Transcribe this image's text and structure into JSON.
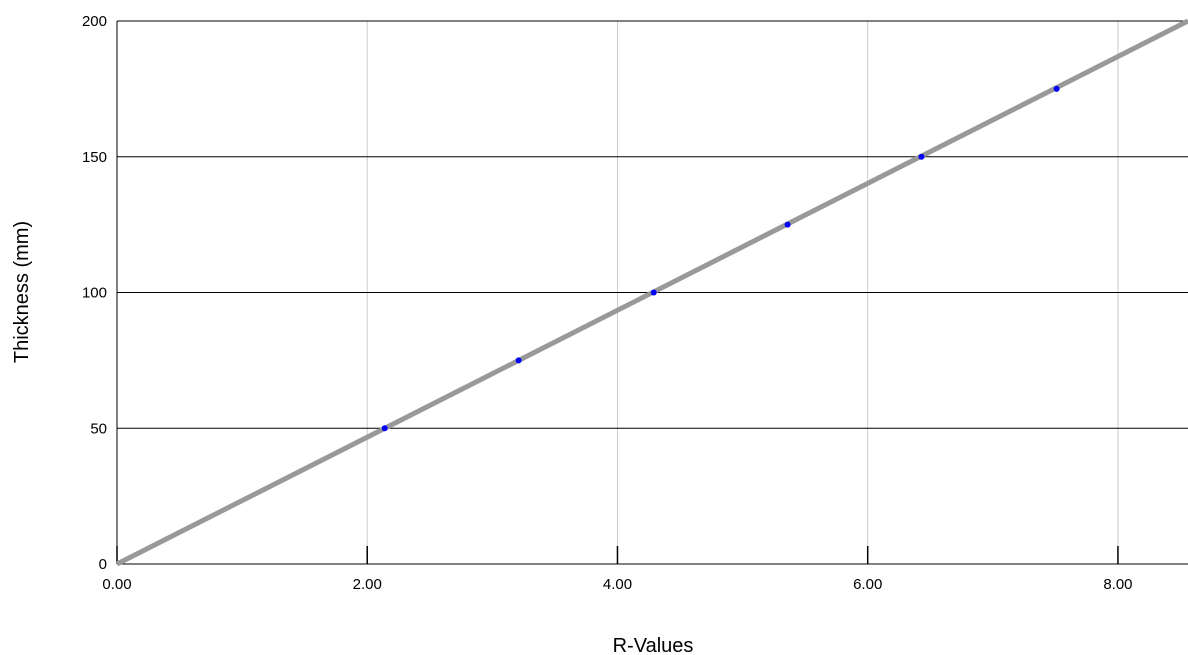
{
  "chart_data": {
    "type": "scatter",
    "title": "",
    "xlabel": "R-Values",
    "ylabel": "Thickness (mm)",
    "xlim": [
      0,
      8.56
    ],
    "ylim": [
      0,
      200
    ],
    "x_ticks": [
      0,
      2,
      4,
      6,
      8
    ],
    "x_tick_labels": [
      "0.00",
      "2.00",
      "4.00",
      "6.00",
      "8.00"
    ],
    "y_ticks": [
      0,
      50,
      100,
      150,
      200
    ],
    "y_tick_labels": [
      "0",
      "50",
      "100",
      "150",
      "200"
    ],
    "grid": "on",
    "legend": "none",
    "series": [
      {
        "kind": "points",
        "color": "#0000ff",
        "x": [
          2.14,
          3.21,
          4.29,
          5.36,
          6.43,
          7.51
        ],
        "y": [
          50,
          75,
          100,
          125,
          150,
          175
        ]
      },
      {
        "kind": "trendline",
        "color": "#999999",
        "x": [
          0,
          8.56
        ],
        "y": [
          0,
          200
        ]
      }
    ]
  }
}
